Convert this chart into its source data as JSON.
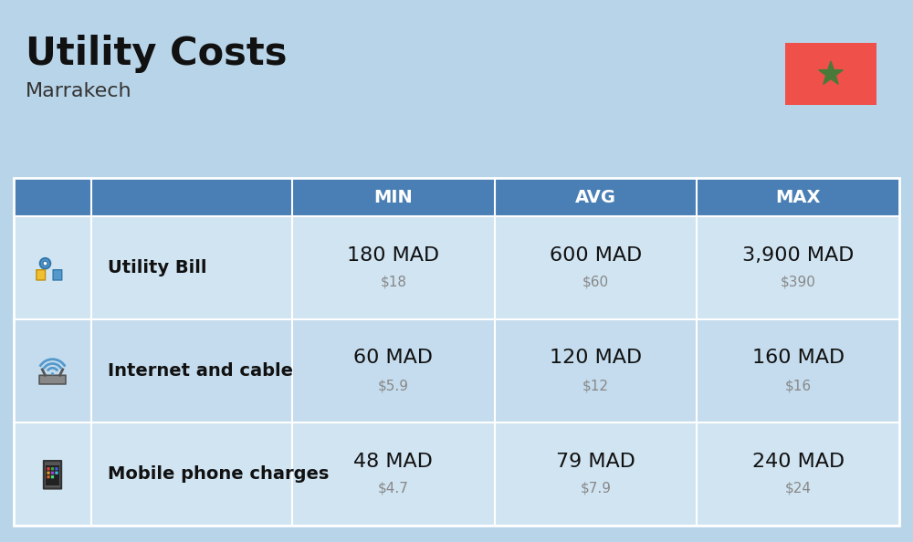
{
  "title": "Utility Costs",
  "subtitle": "Marrakech",
  "background_color": "#b8d4e8",
  "header_color": "#4a7fb5",
  "header_text_color": "#ffffff",
  "row_color_1": "#d0e4f2",
  "row_color_2": "#c4dced",
  "divider_color": "#ffffff",
  "columns": [
    "MIN",
    "AVG",
    "MAX"
  ],
  "rows": [
    {
      "label": "Utility Bill",
      "min_mad": "180 MAD",
      "min_usd": "$18",
      "avg_mad": "600 MAD",
      "avg_usd": "$60",
      "max_mad": "3,900 MAD",
      "max_usd": "$390"
    },
    {
      "label": "Internet and cable",
      "min_mad": "60 MAD",
      "min_usd": "$5.9",
      "avg_mad": "120 MAD",
      "avg_usd": "$12",
      "max_mad": "160 MAD",
      "max_usd": "$16"
    },
    {
      "label": "Mobile phone charges",
      "min_mad": "48 MAD",
      "min_usd": "$4.7",
      "avg_mad": "79 MAD",
      "avg_usd": "$7.9",
      "max_mad": "240 MAD",
      "max_usd": "$24"
    }
  ],
  "flag_red": "#f0504a",
  "flag_green": "#4a7a3a",
  "mad_fontsize": 16,
  "usd_fontsize": 11,
  "usd_color": "#888888",
  "title_fontsize": 30,
  "subtitle_fontsize": 16,
  "label_fontsize": 14,
  "header_fontsize": 14
}
